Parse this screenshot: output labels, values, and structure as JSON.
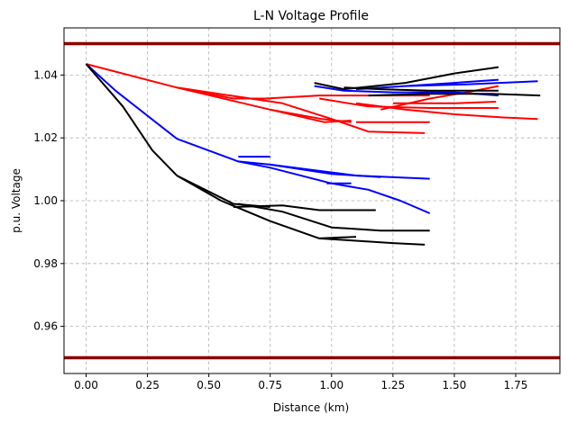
{
  "chart_data": {
    "type": "line",
    "title": "L-N Voltage Profile",
    "xlabel": "Distance (km)",
    "ylabel": "p.u. Voltage",
    "xlim": [
      -0.09,
      1.93
    ],
    "ylim": [
      0.945,
      1.055
    ],
    "xticks": [
      0.0,
      0.25,
      0.5,
      0.75,
      1.0,
      1.25,
      1.5,
      1.75
    ],
    "xtick_labels": [
      "0.00",
      "0.25",
      "0.50",
      "0.75",
      "1.00",
      "1.25",
      "1.50",
      "1.75"
    ],
    "yticks": [
      0.96,
      0.98,
      1.0,
      1.02,
      1.04
    ],
    "ytick_labels": [
      "0.96",
      "0.98",
      "1.00",
      "1.02",
      "1.04"
    ],
    "grid": true,
    "limits": {
      "upper": 1.05,
      "lower": 0.95,
      "color": "#8b0000"
    },
    "series": [
      {
        "color": "#ff0000",
        "segments": [
          [
            [
              0.0,
              1.0435
            ],
            [
              0.37,
              1.036
            ]
          ],
          [
            [
              0.37,
              1.036
            ],
            [
              0.6,
              1.0325
            ],
            [
              0.75,
              1.0325
            ]
          ],
          [
            [
              0.37,
              1.036
            ],
            [
              0.75,
              1.029
            ],
            [
              0.97,
              1.025
            ],
            [
              1.08,
              1.0255
            ]
          ],
          [
            [
              0.75,
              1.029
            ],
            [
              0.96,
              1.026
            ],
            [
              1.08,
              1.025
            ]
          ],
          [
            [
              0.37,
              1.036
            ],
            [
              0.8,
              1.031
            ],
            [
              1.0,
              1.026
            ],
            [
              1.15,
              1.022
            ],
            [
              1.38,
              1.0215
            ]
          ],
          [
            [
              0.73,
              1.0325
            ],
            [
              0.95,
              1.0335
            ],
            [
              1.2,
              1.0335
            ],
            [
              1.4,
              1.0335
            ]
          ],
          [
            [
              0.95,
              1.0325
            ],
            [
              1.15,
              1.03
            ],
            [
              1.4,
              1.0295
            ],
            [
              1.6,
              1.0295
            ],
            [
              1.68,
              1.0295
            ]
          ],
          [
            [
              1.1,
              1.025
            ],
            [
              1.25,
              1.025
            ],
            [
              1.4,
              1.025
            ]
          ],
          [
            [
              1.1,
              1.031
            ],
            [
              1.3,
              1.029
            ],
            [
              1.5,
              1.0275
            ],
            [
              1.7,
              1.0265
            ],
            [
              1.84,
              1.026
            ]
          ],
          [
            [
              1.2,
              1.029
            ],
            [
              1.4,
              1.0325
            ],
            [
              1.55,
              1.0345
            ],
            [
              1.68,
              1.0365
            ]
          ],
          [
            [
              1.25,
              1.031
            ],
            [
              1.5,
              1.031
            ],
            [
              1.67,
              1.0315
            ]
          ]
        ]
      },
      {
        "color": "#0000ff",
        "segments": [
          [
            [
              0.0,
              1.0435
            ],
            [
              0.12,
              1.035
            ],
            [
              0.37,
              1.0197
            ]
          ],
          [
            [
              0.37,
              1.0197
            ],
            [
              0.62,
              1.0125
            ],
            [
              0.75,
              1.0115
            ],
            [
              1.0,
              1.0085
            ],
            [
              1.2,
              1.0075
            ]
          ],
          [
            [
              0.62,
              1.014
            ],
            [
              0.75,
              1.014
            ]
          ],
          [
            [
              0.62,
              1.0125
            ],
            [
              0.75,
              1.0105
            ],
            [
              1.0,
              1.0055
            ],
            [
              1.15,
              1.0035
            ],
            [
              1.28,
              1.0
            ],
            [
              1.4,
              0.996
            ]
          ],
          [
            [
              0.98,
              1.0055
            ],
            [
              1.08,
              1.0055
            ]
          ],
          [
            [
              0.75,
              1.0115
            ],
            [
              1.0,
              1.009
            ],
            [
              1.1,
              1.008
            ],
            [
              1.4,
              1.007
            ]
          ],
          [
            [
              0.93,
              1.0365
            ],
            [
              1.05,
              1.035
            ],
            [
              1.25,
              1.0345
            ],
            [
              1.5,
              1.0345
            ],
            [
              1.68,
              1.0335
            ]
          ],
          [
            [
              1.1,
              1.0355
            ],
            [
              1.3,
              1.0365
            ],
            [
              1.55,
              1.037
            ],
            [
              1.84,
              1.038
            ]
          ],
          [
            [
              1.3,
              1.0365
            ],
            [
              1.5,
              1.0375
            ],
            [
              1.68,
              1.0385
            ]
          ]
        ]
      },
      {
        "color": "#000000",
        "segments": [
          [
            [
              0.0,
              1.0435
            ],
            [
              0.15,
              1.03
            ],
            [
              0.27,
              1.016
            ],
            [
              0.37,
              1.008
            ]
          ],
          [
            [
              0.37,
              1.008
            ],
            [
              0.6,
              0.999
            ],
            [
              0.75,
              0.998
            ]
          ],
          [
            [
              0.37,
              1.008
            ],
            [
              0.55,
              1.0
            ],
            [
              0.75,
              0.9935
            ],
            [
              0.95,
              0.988
            ],
            [
              1.05,
              0.9875
            ],
            [
              1.25,
              0.9865
            ],
            [
              1.38,
              0.986
            ]
          ],
          [
            [
              0.62,
              0.999
            ],
            [
              0.8,
              0.9965
            ],
            [
              1.0,
              0.9915
            ],
            [
              1.2,
              0.9905
            ],
            [
              1.4,
              0.9905
            ]
          ],
          [
            [
              0.6,
              0.998
            ],
            [
              0.8,
              0.9985
            ],
            [
              0.95,
              0.997
            ],
            [
              1.12,
              0.997
            ],
            [
              1.18,
              0.997
            ]
          ],
          [
            [
              0.95,
              0.988
            ],
            [
              1.1,
              0.9885
            ]
          ],
          [
            [
              0.93,
              1.0375
            ],
            [
              1.05,
              1.0355
            ],
            [
              1.3,
              1.0375
            ],
            [
              1.5,
              1.0405
            ],
            [
              1.68,
              1.0425
            ]
          ],
          [
            [
              1.05,
              1.036
            ],
            [
              1.2,
              1.0355
            ],
            [
              1.4,
              1.035
            ],
            [
              1.68,
              1.035
            ]
          ],
          [
            [
              1.15,
              1.0335
            ],
            [
              1.4,
              1.034
            ],
            [
              1.65,
              1.034
            ],
            [
              1.85,
              1.0335
            ]
          ]
        ]
      }
    ]
  }
}
